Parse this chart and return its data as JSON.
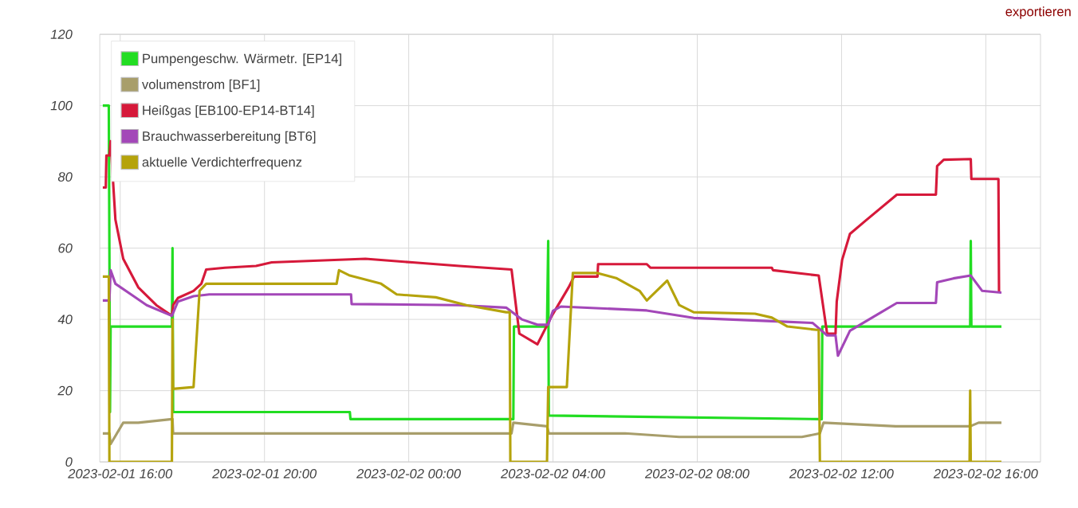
{
  "chart_data": {
    "type": "line",
    "xlim": [
      "2023-02-01T15:26",
      "2023-02-02T17:31"
    ],
    "ylim": [
      0,
      120
    ],
    "xticks": [
      {
        "value": "2023-02-01T16:00",
        "label": "2023-02-01 16:00"
      },
      {
        "value": "2023-02-01T20:00",
        "label": "2023-02-01 20:00"
      },
      {
        "value": "2023-02-02T00:00",
        "label": "2023-02-02 00:00"
      },
      {
        "value": "2023-02-02T04:00",
        "label": "2023-02-02 04:00"
      },
      {
        "value": "2023-02-02T08:00",
        "label": "2023-02-02 08:00"
      },
      {
        "value": "2023-02-02T12:00",
        "label": "2023-02-02 12:00"
      },
      {
        "value": "2023-02-02T16:00",
        "label": "2023-02-02 16:00"
      }
    ],
    "yticks": [
      0,
      20,
      40,
      60,
      80,
      100,
      120
    ],
    "grid": true,
    "legend": "top left",
    "annotations": [
      "exportieren"
    ],
    "series": [
      {
        "name": "Pumpengeschw. Wärmetr. [EP14]",
        "color": "#22dd22",
        "x": [
          "2023-02-01T15:31",
          "2023-02-01T15:41",
          "2023-02-01T15:42",
          "2023-02-01T15:43",
          "2023-02-01T15:44",
          "2023-02-01T17:26",
          "2023-02-01T17:27",
          "2023-02-01T17:28",
          "2023-02-01T22:22",
          "2023-02-01T22:23",
          "2023-02-02T02:54",
          "2023-02-02T02:55",
          "2023-02-02T03:50",
          "2023-02-02T03:52",
          "2023-02-02T03:53",
          "2023-02-02T11:27",
          "2023-02-02T11:28",
          "2023-02-02T15:34",
          "2023-02-02T15:35",
          "2023-02-02T15:36",
          "2023-02-02T16:26"
        ],
        "values": [
          100,
          100,
          60,
          14,
          38,
          38,
          60,
          14,
          14,
          12,
          12,
          38,
          38,
          62,
          13,
          12,
          38,
          38,
          62,
          38,
          38
        ]
      },
      {
        "name": "volumenstrom [BF1]",
        "color": "#a89e6b",
        "x": [
          "2023-02-01T15:31",
          "2023-02-01T15:42",
          "2023-02-01T15:44",
          "2023-02-01T16:05",
          "2023-02-01T16:30",
          "2023-02-01T17:26",
          "2023-02-01T17:27",
          "2023-02-01T17:28",
          "2023-02-01T20:00",
          "2023-02-01T22:30",
          "2023-02-02T02:51",
          "2023-02-02T02:54",
          "2023-02-02T03:50",
          "2023-02-02T03:53",
          "2023-02-02T06:00",
          "2023-02-02T07:30",
          "2023-02-02T10:54",
          "2023-02-02T11:24",
          "2023-02-02T11:30",
          "2023-02-02T13:30",
          "2023-02-02T15:34",
          "2023-02-02T15:48",
          "2023-02-02T16:26"
        ],
        "values": [
          8,
          8,
          5,
          11,
          11,
          12,
          12,
          8,
          8,
          8,
          8,
          11,
          10,
          8,
          8,
          7,
          7,
          8,
          11,
          10,
          10,
          11,
          11
        ]
      },
      {
        "name": "Heißgas [EB100-EP14-BT14]",
        "color": "#d6193a",
        "x": [
          "2023-02-01T15:31",
          "2023-02-01T15:36",
          "2023-02-01T15:37",
          "2023-02-01T15:42",
          "2023-02-01T15:44",
          "2023-02-01T15:52",
          "2023-02-01T16:05",
          "2023-02-01T16:30",
          "2023-02-01T17:00",
          "2023-02-01T17:26",
          "2023-02-01T17:28",
          "2023-02-01T17:36",
          "2023-02-01T18:02",
          "2023-02-01T18:15",
          "2023-02-01T18:23",
          "2023-02-01T18:54",
          "2023-02-01T19:46",
          "2023-02-01T20:12",
          "2023-02-01T22:48",
          "2023-02-02T00:06",
          "2023-02-02T01:24",
          "2023-02-02T02:51",
          "2023-02-02T03:04",
          "2023-02-02T03:34",
          "2023-02-02T03:58",
          "2023-02-02T04:26",
          "2023-02-02T04:35",
          "2023-02-02T05:14",
          "2023-02-02T05:15",
          "2023-02-02T06:36",
          "2023-02-02T06:42",
          "2023-02-02T10:04",
          "2023-02-02T10:06",
          "2023-02-02T11:22",
          "2023-02-02T11:36",
          "2023-02-02T11:50",
          "2023-02-02T11:52",
          "2023-02-02T12:01",
          "2023-02-02T12:14",
          "2023-02-02T12:40",
          "2023-02-02T13:32",
          "2023-02-02T14:37",
          "2023-02-02T14:39",
          "2023-02-02T14:50",
          "2023-02-02T15:35",
          "2023-02-02T15:36",
          "2023-02-02T16:21",
          "2023-02-02T16:22"
        ],
        "values": [
          77,
          77,
          86,
          86,
          90,
          68,
          57,
          49,
          44,
          41,
          44,
          46,
          48,
          50,
          54,
          54.5,
          55,
          56,
          57,
          56,
          55,
          54,
          36,
          33,
          41,
          49,
          52,
          52,
          55.5,
          55.5,
          54.5,
          54.5,
          53.8,
          52.3,
          36,
          36,
          45,
          56.7,
          64,
          67.7,
          75,
          75,
          83,
          84.8,
          85,
          79.4,
          79.4,
          47.5
        ]
      },
      {
        "name": "Brauchwasserbereitung [BT6]",
        "color": "#a347b8",
        "x": [
          "2023-02-01T15:31",
          "2023-02-01T15:42",
          "2023-02-01T15:44",
          "2023-02-01T15:52",
          "2023-02-01T16:18",
          "2023-02-01T16:44",
          "2023-02-01T17:26",
          "2023-02-01T17:36",
          "2023-02-01T18:02",
          "2023-02-01T18:28",
          "2023-02-01T22:24",
          "2023-02-01T22:25",
          "2023-02-02T01:24",
          "2023-02-02T02:42",
          "2023-02-02T03:08",
          "2023-02-02T03:34",
          "2023-02-02T03:52",
          "2023-02-02T04:00",
          "2023-02-02T04:13",
          "2023-02-02T06:36",
          "2023-02-02T07:54",
          "2023-02-02T10:04",
          "2023-02-02T11:12",
          "2023-02-02T11:36",
          "2023-02-02T11:50",
          "2023-02-02T11:54",
          "2023-02-02T12:14",
          "2023-02-02T13:06",
          "2023-02-02T13:32",
          "2023-02-02T14:37",
          "2023-02-02T14:39",
          "2023-02-02T15:06",
          "2023-02-02T15:35",
          "2023-02-02T15:54",
          "2023-02-02T16:26"
        ],
        "values": [
          45.3,
          45.3,
          53.8,
          50,
          47,
          44,
          41,
          45,
          46.5,
          47,
          47,
          44.3,
          44,
          43.3,
          40,
          38.5,
          38.5,
          42.4,
          43.6,
          42.5,
          40.4,
          39.5,
          39,
          35.5,
          35.5,
          29.8,
          36.8,
          42,
          44.6,
          44.6,
          50.4,
          51.5,
          52.3,
          48,
          47.5
        ]
      },
      {
        "name": "aktuelle Verdichterfrequenz",
        "color": "#b5a30c",
        "x": [
          "2023-02-01T15:31",
          "2023-02-01T15:41",
          "2023-02-01T15:42",
          "2023-02-01T17:26",
          "2023-02-01T17:27",
          "2023-02-01T17:28",
          "2023-02-01T18:02",
          "2023-02-01T18:12",
          "2023-02-01T18:23",
          "2023-02-01T22:00",
          "2023-02-01T22:04",
          "2023-02-01T22:22",
          "2023-02-01T23:14",
          "2023-02-01T23:40",
          "2023-02-02T00:45",
          "2023-02-02T01:36",
          "2023-02-02T02:42",
          "2023-02-02T02:48",
          "2023-02-02T02:49",
          "2023-02-02T03:50",
          "2023-02-02T03:52",
          "2023-02-02T04:23",
          "2023-02-02T04:33",
          "2023-02-02T05:06",
          "2023-02-02T05:14",
          "2023-02-02T05:45",
          "2023-02-02T06:24",
          "2023-02-02T06:36",
          "2023-02-02T07:10",
          "2023-02-02T07:30",
          "2023-02-02T07:54",
          "2023-02-02T09:36",
          "2023-02-02T10:04",
          "2023-02-02T10:30",
          "2023-02-02T11:22",
          "2023-02-02T11:24",
          "2023-02-02T15:33",
          "2023-02-02T15:34",
          "2023-02-02T15:35",
          "2023-02-02T16:26"
        ],
        "values": [
          52,
          52,
          0,
          0,
          40,
          20.5,
          21,
          48,
          50,
          50,
          53.8,
          52.3,
          50,
          47,
          46.2,
          44,
          42,
          42,
          0,
          0,
          21,
          21,
          53,
          53,
          53,
          51.6,
          48,
          45.3,
          50.9,
          44,
          42,
          41.6,
          40.5,
          38,
          37,
          0,
          0,
          20,
          0,
          0
        ]
      }
    ]
  }
}
